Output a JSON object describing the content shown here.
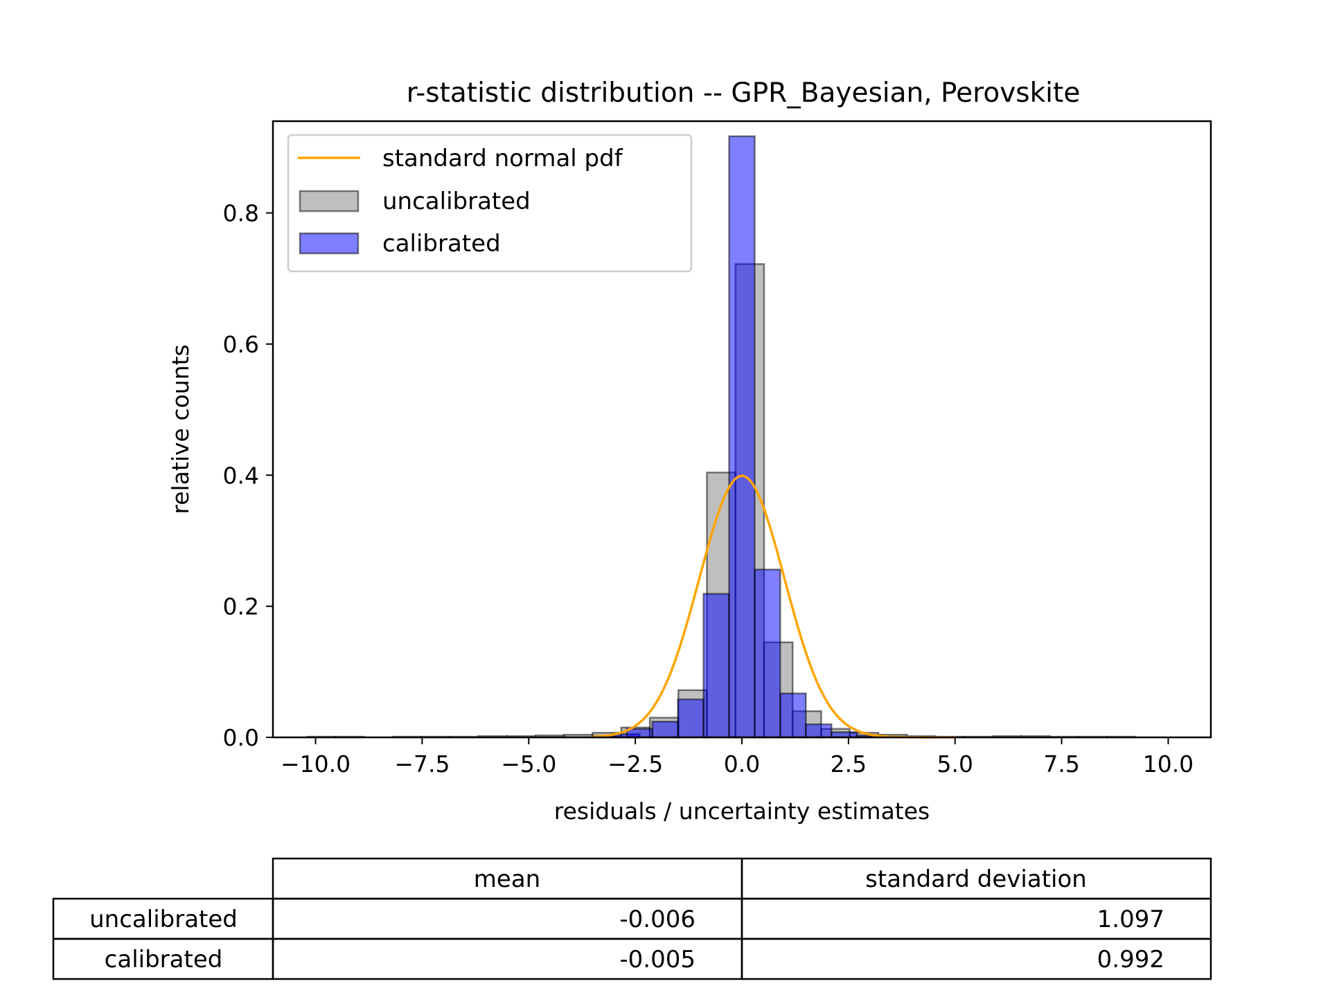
{
  "chart_data": {
    "type": "bar",
    "title": "r-statistic distribution -- GPR_Bayesian, Perovskite",
    "xlabel": "residuals / uncertainty estimates",
    "ylabel": "relative counts",
    "xlim": [
      -11.0,
      11.0
    ],
    "ylim": [
      0,
      0.94
    ],
    "xticks": [
      -10.0,
      -7.5,
      -5.0,
      -2.5,
      0.0,
      2.5,
      5.0,
      7.5,
      10.0
    ],
    "xtick_labels": [
      "−10.0",
      "−7.5",
      "−5.0",
      "−2.5",
      "0.0",
      "2.5",
      "5.0",
      "7.5",
      "10.0"
    ],
    "yticks": [
      0.0,
      0.2,
      0.4,
      0.6,
      0.8
    ],
    "ytick_labels": [
      "0.0",
      "0.2",
      "0.4",
      "0.6",
      "0.8"
    ],
    "grid": false,
    "legend_position": "upper-left",
    "series": [
      {
        "name": "uncalibrated",
        "kind": "histogram",
        "color": "#808080",
        "bin_width": 0.67,
        "bin_starts": [
          -10.2,
          -9.53,
          -8.86,
          -8.19,
          -7.52,
          -6.85,
          -6.18,
          -5.51,
          -4.84,
          -4.17,
          -3.5,
          -2.83,
          -2.16,
          -1.49,
          -0.82,
          -0.15,
          0.52,
          1.19,
          1.86,
          2.53,
          3.2,
          3.87,
          4.54,
          5.21,
          5.88,
          6.55,
          7.22,
          7.89,
          8.56
        ],
        "values": [
          0.001,
          0.001,
          0.0,
          0.001,
          0.001,
          0.001,
          0.002,
          0.002,
          0.003,
          0.004,
          0.007,
          0.015,
          0.03,
          0.072,
          0.404,
          0.722,
          0.145,
          0.04,
          0.013,
          0.007,
          0.004,
          0.002,
          0.001,
          0.001,
          0.002,
          0.002,
          0.001,
          0.001,
          0.001
        ]
      },
      {
        "name": "calibrated",
        "kind": "histogram",
        "color": "#0000ff",
        "bin_width": 0.6,
        "bin_starts": [
          -3.5,
          -3.0,
          -2.7,
          -2.1,
          -1.5,
          -0.9,
          -0.3,
          0.3,
          0.9,
          1.5,
          2.1,
          2.7
        ],
        "values": [
          0.002,
          0.005,
          0.013,
          0.024,
          0.058,
          0.219,
          0.917,
          0.256,
          0.067,
          0.02,
          0.008,
          0.003
        ]
      },
      {
        "name": "standard normal pdf",
        "kind": "line",
        "color": "#ffa500",
        "function": "standard normal pdf",
        "x_range": [
          -3.5,
          5.0
        ]
      }
    ]
  },
  "table": {
    "headers": [
      "mean",
      "standard deviation"
    ],
    "rows": [
      {
        "label": "uncalibrated",
        "mean": "-0.006",
        "std": "1.097"
      },
      {
        "label": "calibrated",
        "mean": "-0.005",
        "std": "0.992"
      }
    ]
  }
}
